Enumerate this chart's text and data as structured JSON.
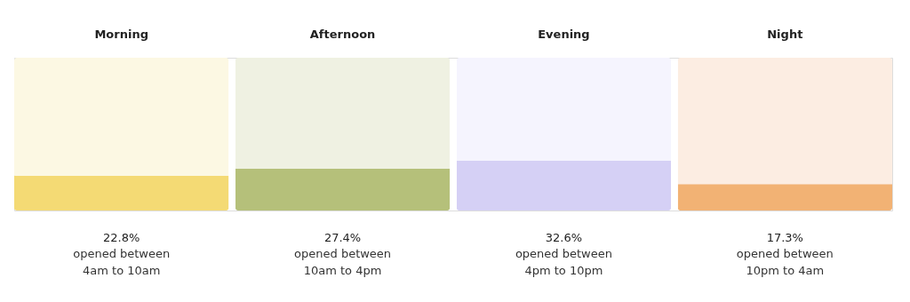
{
  "chart_data": {
    "type": "bar",
    "stacked": true,
    "categories": [
      "Morning",
      "Afternoon",
      "Evening",
      "Night"
    ],
    "series": [
      {
        "colors": [
          "#f4da74",
          "#b5c07a",
          "#d5d0f5",
          "#f2b274"
        ],
        "values": [
          22.8,
          27.4,
          32.6,
          17.3
        ],
        "value_labels": [
          "22.8%",
          "27.4%",
          "32.6%",
          "17.3%"
        ]
      },
      {
        "colors": [
          "#fcf8e3",
          "#eff1e2",
          "#f5f4fe",
          "#fcede2"
        ],
        "values": [
          77.2,
          72.6,
          67.4,
          82.7
        ]
      }
    ],
    "ylim": [
      0,
      100
    ],
    "tick_labels": "x",
    "grid": false,
    "annotations": [
      "opened between\n4am to 10am",
      "opened between\n10am to 4pm",
      "opened between\n4pm to 10pm",
      "opened between\n10pm to 4am"
    ]
  }
}
